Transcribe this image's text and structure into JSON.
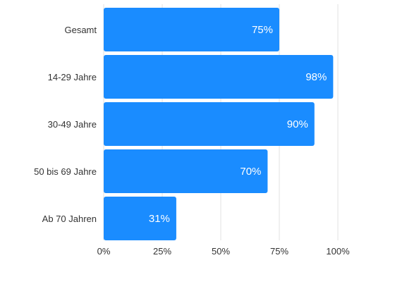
{
  "chart_data": {
    "type": "bar",
    "orientation": "horizontal",
    "categories": [
      "Gesamt",
      "14-29 Jahre",
      "30-49 Jahre",
      "50 bis 69 Jahre",
      "Ab 70 Jahren"
    ],
    "values": [
      75,
      98,
      90,
      70,
      31
    ],
    "value_labels": [
      "75%",
      "98%",
      "90%",
      "70%",
      "31%"
    ],
    "xticks": [
      0,
      25,
      50,
      75,
      100
    ],
    "xtick_labels": [
      "0%",
      "25%",
      "50%",
      "75%",
      "100%"
    ],
    "xlim": [
      0,
      100
    ],
    "grid": true,
    "title": "",
    "xlabel": "",
    "ylabel": "",
    "bar_color": "#1a8cff"
  }
}
